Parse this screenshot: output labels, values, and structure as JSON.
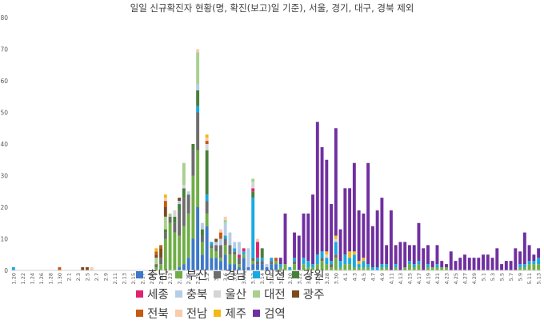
{
  "chart_data": {
    "type": "bar",
    "stacked": true,
    "title": "일일 신규확진자 현황(명, 확진(보고)일 기준), 서울, 경기, 대구, 경북 제외",
    "ylim": [
      0,
      80
    ],
    "yticks": [
      "0",
      "10",
      "20",
      "30",
      "40",
      "50",
      "60",
      "70",
      "80"
    ],
    "grid": false,
    "legend_position": "bottom",
    "dates": [
      "1.20",
      "1.21",
      "1.22",
      "1.23",
      "1.24",
      "1.25",
      "1.26",
      "1.27",
      "1.28",
      "1.29",
      "1.30",
      "1.31",
      "2.1",
      "2.2",
      "2.3",
      "2.4",
      "2.5",
      "2.6",
      "2.7",
      "2.8",
      "2.9",
      "2.10",
      "2.11",
      "2.12",
      "2.13",
      "2.14",
      "2.15",
      "2.16",
      "2.17",
      "2.18",
      "2.19",
      "2.20",
      "2.21",
      "2.22",
      "2.23",
      "2.24",
      "2.25",
      "2.26",
      "2.27",
      "2.28",
      "2.29",
      "3.1",
      "3.2",
      "3.3",
      "3.4",
      "3.5",
      "3.6",
      "3.7",
      "3.8",
      "3.9",
      "3.10",
      "3.11",
      "3.12",
      "3.13",
      "3.14",
      "3.15",
      "3.16",
      "3.17",
      "3.18",
      "3.19",
      "3.20",
      "3.21",
      "3.22",
      "3.23",
      "3.24",
      "3.25",
      "3.26",
      "3.27",
      "3.28",
      "3.29",
      "3.30",
      "3.31",
      "4.1",
      "4.2",
      "4.3",
      "4.4",
      "4.5",
      "4.6",
      "4.7",
      "4.8",
      "4.9",
      "4.10",
      "4.11",
      "4.12",
      "4.13",
      "4.14",
      "4.15",
      "4.16",
      "4.17",
      "4.18",
      "4.19",
      "4.20",
      "4.21",
      "4.22",
      "4.23",
      "4.24",
      "4.25",
      "4.26",
      "4.27",
      "4.28",
      "4.29",
      "4.30",
      "5.1",
      "5.2",
      "5.3",
      "5.4",
      "5.5",
      "5.6",
      "5.7",
      "5.8",
      "5.9",
      "5.10",
      "5.11",
      "5.12",
      "5.13"
    ],
    "tick_labels": [
      "1.20",
      "1.22",
      "1.24",
      "1.26",
      "1.28",
      "1.30",
      "2.1",
      "2.3",
      "2.5",
      "2.7",
      "2.9",
      "2.11",
      "2.13",
      "2.15",
      "2.17",
      "2.19",
      "2.21",
      "2.23",
      "2.25",
      "2.27",
      "2.29",
      "3.2",
      "3.4",
      "3.6",
      "3.8",
      "3.10",
      "3.12",
      "3.14",
      "3.16",
      "3.18",
      "3.20",
      "3.22",
      "3.24",
      "3.26",
      "3.28",
      "3.30",
      "4.1",
      "4.3",
      "4.5",
      "4.7",
      "4.9",
      "4.11",
      "4.13",
      "4.15",
      "4.17",
      "4.19",
      "4.21",
      "4.23",
      "4.25",
      "4.27",
      "4.29",
      "5.1",
      "5.3",
      "5.5",
      "5.7",
      "5.9",
      "5.11",
      "5.13"
    ],
    "series": [
      {
        "name": "충남",
        "color": "#3E78C8"
      },
      {
        "name": "부산",
        "color": "#6FAE46"
      },
      {
        "name": "경남",
        "color": "#6D6D6D"
      },
      {
        "name": "인천",
        "color": "#19A9E1"
      },
      {
        "name": "강원",
        "color": "#47803A"
      },
      {
        "name": "세종",
        "color": "#E0236E"
      },
      {
        "name": "충북",
        "color": "#B6CDE8"
      },
      {
        "name": "울산",
        "color": "#D5D5D5"
      },
      {
        "name": "대전",
        "color": "#A9D08E"
      },
      {
        "name": "광주",
        "color": "#7C4A20"
      },
      {
        "name": "전북",
        "color": "#C55A11"
      },
      {
        "name": "전남",
        "color": "#F8CBAD"
      },
      {
        "name": "제주",
        "color": "#F2B81A"
      },
      {
        "name": "검역",
        "color": "#7030A0"
      }
    ],
    "stacks": {
      "1.20": [
        0,
        0,
        0,
        1,
        0,
        0,
        0,
        0,
        0,
        0,
        0,
        0,
        0,
        0
      ],
      "1.30": [
        0,
        0,
        0,
        0,
        0,
        0,
        0,
        0,
        0,
        0,
        1,
        0,
        0,
        0
      ],
      "2.4": [
        0,
        0,
        0,
        0,
        0,
        0,
        0,
        0,
        0,
        1,
        0,
        0,
        0,
        0
      ],
      "2.5": [
        0,
        0,
        0,
        0,
        0,
        0,
        0,
        0,
        0,
        1,
        0,
        0,
        0,
        0
      ],
      "2.6": [
        0,
        0,
        0,
        0,
        0,
        0,
        0,
        0,
        0,
        0,
        0,
        1,
        0,
        0
      ],
      "2.20": [
        0,
        1,
        1,
        0,
        0,
        0,
        0,
        0,
        2,
        1,
        1,
        0,
        1,
        0
      ],
      "2.21": [
        0,
        2,
        2,
        0,
        0,
        0,
        0,
        0,
        0,
        3,
        1,
        0,
        0,
        0
      ],
      "2.22": [
        0,
        10,
        2,
        0,
        1,
        0,
        0,
        0,
        4,
        3,
        2,
        1,
        1,
        0
      ],
      "2.23": [
        0,
        15,
        2,
        0,
        0,
        0,
        0,
        0,
        1,
        0,
        0,
        0,
        0,
        0
      ],
      "2.24": [
        0,
        12,
        3,
        0,
        2,
        0,
        0,
        2,
        0,
        0,
        0,
        0,
        0,
        0
      ],
      "2.25": [
        1,
        10,
        8,
        0,
        2,
        0,
        1,
        0,
        0,
        1,
        0,
        0,
        0,
        0
      ],
      "2.26": [
        2,
        12,
        9,
        0,
        3,
        0,
        0,
        1,
        7,
        0,
        0,
        0,
        0,
        0
      ],
      "2.27": [
        4,
        14,
        6,
        0,
        0,
        0,
        1,
        0,
        0,
        0,
        0,
        0,
        0,
        0
      ],
      "2.28": [
        10,
        20,
        8,
        0,
        2,
        0,
        0,
        0,
        0,
        0,
        0,
        0,
        0,
        0
      ],
      "2.29": [
        20,
        18,
        12,
        2,
        5,
        0,
        2,
        0,
        10,
        0,
        0,
        1,
        0,
        0
      ],
      "3.1": [
        5,
        4,
        2,
        0,
        2,
        0,
        2,
        0,
        0,
        0,
        0,
        0,
        0,
        0
      ],
      "3.2": [
        14,
        4,
        4,
        2,
        14,
        0,
        0,
        2,
        0,
        0,
        1,
        1,
        1,
        0
      ],
      "3.3": [
        4,
        3,
        1,
        1,
        0,
        0,
        0,
        0,
        0,
        0,
        0,
        0,
        0,
        0
      ],
      "3.4": [
        4,
        2,
        2,
        0,
        0,
        0,
        1,
        0,
        0,
        1,
        0,
        0,
        0,
        0
      ],
      "3.5": [
        3,
        1,
        4,
        0,
        0,
        0,
        2,
        0,
        0,
        0,
        2,
        1,
        0,
        0
      ],
      "3.6": [
        5,
        3,
        2,
        1,
        0,
        0,
        4,
        0,
        1,
        0,
        0,
        1,
        0,
        0
      ],
      "3.7": [
        2,
        3,
        3,
        0,
        0,
        0,
        4,
        0,
        0,
        0,
        0,
        0,
        0,
        0
      ],
      "3.8": [
        2,
        3,
        1,
        1,
        0,
        0,
        2,
        0,
        0,
        0,
        0,
        0,
        0,
        0
      ],
      "3.9": [
        1,
        1,
        2,
        0,
        0,
        1,
        4,
        0,
        0,
        0,
        0,
        0,
        0,
        0
      ],
      "3.10": [
        4,
        1,
        0,
        1,
        0,
        1,
        0,
        0,
        0,
        0,
        0,
        0,
        0,
        0
      ],
      "3.11": [
        1,
        0,
        0,
        0,
        0,
        0,
        6,
        0,
        0,
        0,
        0,
        0,
        0,
        0
      ],
      "3.12": [
        2,
        1,
        1,
        19,
        2,
        1,
        0,
        2,
        1,
        0,
        0,
        0,
        0,
        0
      ],
      "3.13": [
        2,
        0,
        1,
        1,
        0,
        5,
        0,
        0,
        0,
        0,
        0,
        1,
        0,
        0
      ],
      "3.14": [
        2,
        0,
        1,
        1,
        3,
        0,
        0,
        0,
        0,
        0,
        0,
        0,
        0,
        0
      ],
      "3.15": [
        1,
        0,
        0,
        0,
        0,
        0,
        1,
        0,
        0,
        0,
        0,
        0,
        0,
        0
      ],
      "3.16": [
        2,
        0,
        1,
        1,
        0,
        0,
        0,
        0,
        0,
        0,
        0,
        0,
        0,
        0
      ],
      "3.17": [
        2,
        1,
        0,
        0,
        0,
        0,
        0,
        0,
        0,
        0,
        1,
        0,
        0,
        0
      ],
      "3.18": [
        0,
        1,
        0,
        1,
        0,
        0,
        0,
        0,
        0,
        0,
        0,
        0,
        0,
        2
      ],
      "3.19": [
        0,
        2,
        0,
        0,
        0,
        0,
        0,
        0,
        0,
        0,
        0,
        0,
        0,
        16
      ],
      "3.20": [
        0,
        0,
        0,
        1,
        0,
        0,
        0,
        0,
        0,
        0,
        0,
        0,
        0,
        0
      ],
      "3.21": [
        0,
        2,
        1,
        1,
        0,
        0,
        0,
        0,
        0,
        0,
        0,
        0,
        0,
        8
      ],
      "3.22": [
        0,
        0,
        0,
        0,
        0,
        0,
        0,
        0,
        0,
        0,
        0,
        0,
        0,
        11
      ],
      "3.23": [
        0,
        2,
        0,
        2,
        0,
        0,
        0,
        0,
        0,
        0,
        0,
        0,
        0,
        14
      ],
      "3.24": [
        0,
        1,
        0,
        2,
        0,
        0,
        0,
        0,
        0,
        0,
        0,
        0,
        0,
        15
      ],
      "3.25": [
        0,
        1,
        0,
        1,
        0,
        0,
        0,
        0,
        0,
        0,
        0,
        0,
        0,
        22
      ],
      "3.26": [
        0,
        2,
        0,
        3,
        0,
        0,
        0,
        0,
        0,
        0,
        0,
        0,
        0,
        42
      ],
      "3.27": [
        0,
        3,
        1,
        2,
        0,
        0,
        0,
        0,
        0,
        0,
        0,
        0,
        0,
        33
      ],
      "3.28": [
        0,
        2,
        0,
        2,
        0,
        0,
        0,
        1,
        0,
        0,
        0,
        0,
        1,
        29
      ],
      "3.29": [
        0,
        1,
        1,
        1,
        0,
        0,
        0,
        0,
        0,
        0,
        0,
        0,
        0,
        18
      ],
      "3.30": [
        0,
        4,
        1,
        4,
        0,
        0,
        0,
        1,
        0,
        0,
        0,
        0,
        1,
        34
      ],
      "3.31": [
        0,
        1,
        0,
        2,
        0,
        0,
        0,
        0,
        0,
        0,
        0,
        0,
        0,
        10
      ],
      "4.1": [
        0,
        2,
        0,
        3,
        0,
        0,
        0,
        0,
        0,
        0,
        0,
        0,
        0,
        21
      ],
      "4.2": [
        0,
        2,
        0,
        2,
        0,
        0,
        0,
        0,
        0,
        0,
        0,
        0,
        2,
        20
      ],
      "4.3": [
        0,
        1,
        0,
        4,
        0,
        0,
        0,
        0,
        0,
        0,
        0,
        0,
        1,
        28
      ],
      "4.4": [
        0,
        1,
        0,
        1,
        0,
        0,
        0,
        0,
        0,
        0,
        0,
        0,
        1,
        16
      ],
      "4.5": [
        0,
        1,
        0,
        2,
        0,
        0,
        0,
        0,
        0,
        0,
        0,
        0,
        1,
        14
      ],
      "4.6": [
        0,
        1,
        0,
        1,
        0,
        0,
        0,
        0,
        0,
        0,
        0,
        0,
        0,
        32
      ],
      "4.7": [
        0,
        0,
        0,
        1,
        0,
        0,
        0,
        0,
        0,
        0,
        0,
        0,
        0,
        13
      ],
      "4.8": [
        0,
        0,
        0,
        1,
        0,
        0,
        0,
        0,
        0,
        0,
        0,
        0,
        0,
        18
      ],
      "4.9": [
        0,
        1,
        0,
        1,
        0,
        0,
        0,
        0,
        0,
        0,
        0,
        0,
        0,
        21
      ],
      "4.10": [
        0,
        1,
        0,
        1,
        0,
        0,
        0,
        0,
        0,
        0,
        0,
        0,
        0,
        6
      ],
      "4.11": [
        0,
        0,
        0,
        0,
        0,
        0,
        0,
        0,
        0,
        0,
        0,
        0,
        0,
        19
      ],
      "4.12": [
        0,
        1,
        0,
        1,
        0,
        0,
        0,
        0,
        0,
        0,
        0,
        0,
        0,
        6
      ],
      "4.13": [
        0,
        0,
        0,
        0,
        0,
        0,
        0,
        0,
        0,
        0,
        0,
        0,
        0,
        9
      ],
      "4.14": [
        0,
        1,
        0,
        0,
        0,
        0,
        0,
        0,
        0,
        0,
        0,
        0,
        0,
        8
      ],
      "4.15": [
        0,
        2,
        0,
        1,
        0,
        0,
        0,
        0,
        0,
        0,
        0,
        0,
        0,
        5
      ],
      "4.16": [
        0,
        1,
        0,
        1,
        0,
        0,
        0,
        0,
        0,
        0,
        0,
        0,
        0,
        6
      ],
      "4.17": [
        0,
        2,
        0,
        1,
        0,
        0,
        0,
        0,
        0,
        0,
        0,
        0,
        0,
        12
      ],
      "4.18": [
        0,
        0,
        0,
        0,
        0,
        0,
        0,
        0,
        0,
        0,
        0,
        0,
        0,
        7
      ],
      "4.19": [
        0,
        1,
        0,
        1,
        0,
        0,
        0,
        0,
        0,
        0,
        0,
        0,
        0,
        6
      ],
      "4.20": [
        0,
        1,
        0,
        0,
        0,
        0,
        0,
        0,
        0,
        0,
        0,
        0,
        0,
        2
      ],
      "4.21": [
        0,
        1,
        0,
        1,
        0,
        0,
        0,
        0,
        0,
        0,
        0,
        0,
        0,
        6
      ],
      "4.22": [
        0,
        1,
        0,
        0,
        0,
        0,
        0,
        0,
        0,
        0,
        0,
        0,
        0,
        2
      ],
      "4.23": [
        0,
        1,
        0,
        0,
        0,
        0,
        0,
        0,
        0,
        0,
        0,
        0,
        0,
        1
      ],
      "4.24": [
        0,
        0,
        0,
        0,
        0,
        0,
        0,
        0,
        0,
        0,
        0,
        0,
        0,
        6
      ],
      "4.25": [
        0,
        0,
        0,
        0,
        0,
        0,
        0,
        0,
        0,
        0,
        0,
        0,
        0,
        3
      ],
      "4.26": [
        0,
        0,
        0,
        0,
        0,
        0,
        0,
        0,
        0,
        0,
        0,
        0,
        0,
        4
      ],
      "4.27": [
        0,
        0,
        0,
        0,
        0,
        0,
        0,
        0,
        0,
        0,
        0,
        0,
        0,
        5
      ],
      "4.28": [
        0,
        0,
        0,
        0,
        0,
        0,
        0,
        0,
        0,
        0,
        0,
        0,
        0,
        4
      ],
      "4.29": [
        0,
        0,
        0,
        0,
        0,
        0,
        0,
        0,
        0,
        0,
        0,
        0,
        0,
        4
      ],
      "4.30": [
        0,
        0,
        0,
        0,
        0,
        0,
        0,
        0,
        0,
        0,
        0,
        0,
        0,
        4
      ],
      "5.1": [
        0,
        0,
        0,
        0,
        0,
        0,
        0,
        0,
        0,
        0,
        0,
        0,
        0,
        5
      ],
      "5.2": [
        0,
        0,
        0,
        0,
        0,
        0,
        0,
        0,
        0,
        0,
        0,
        0,
        0,
        5
      ],
      "5.3": [
        0,
        0,
        0,
        0,
        0,
        0,
        0,
        0,
        0,
        0,
        0,
        0,
        0,
        4
      ],
      "5.4": [
        0,
        0,
        0,
        0,
        0,
        0,
        0,
        0,
        0,
        0,
        0,
        0,
        0,
        7
      ],
      "5.5": [
        0,
        0,
        0,
        0,
        0,
        0,
        0,
        0,
        0,
        0,
        0,
        0,
        0,
        2
      ],
      "5.6": [
        0,
        0,
        0,
        0,
        0,
        0,
        0,
        0,
        0,
        0,
        0,
        0,
        0,
        3
      ],
      "5.7": [
        0,
        0,
        0,
        0,
        0,
        0,
        0,
        0,
        0,
        0,
        0,
        0,
        0,
        3
      ],
      "5.8": [
        0,
        0,
        0,
        0,
        0,
        0,
        0,
        0,
        0,
        0,
        0,
        0,
        0,
        7
      ],
      "5.9": [
        0,
        1,
        0,
        1,
        0,
        0,
        0,
        0,
        0,
        0,
        0,
        0,
        0,
        4
      ],
      "5.10": [
        0,
        1,
        0,
        1,
        0,
        0,
        0,
        0,
        0,
        0,
        0,
        0,
        0,
        10
      ],
      "5.11": [
        0,
        2,
        0,
        1,
        0,
        0,
        0,
        0,
        0,
        0,
        0,
        0,
        0,
        5
      ],
      "5.12": [
        0,
        2,
        0,
        1,
        0,
        0,
        0,
        0,
        0,
        0,
        0,
        0,
        0,
        2
      ],
      "5.13": [
        0,
        2,
        0,
        2,
        0,
        0,
        0,
        0,
        0,
        0,
        0,
        0,
        0,
        3
      ]
    }
  }
}
